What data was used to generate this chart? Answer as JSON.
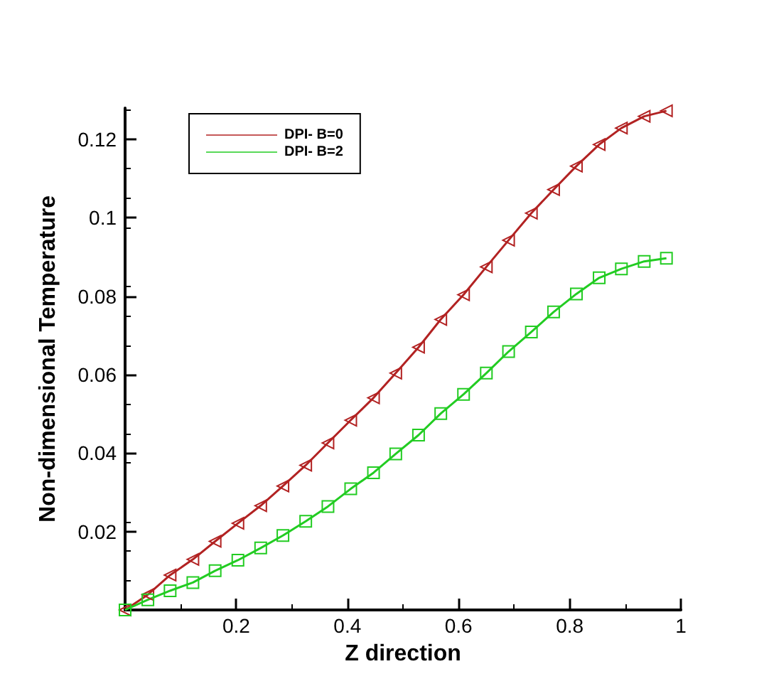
{
  "chart_data": {
    "type": "line",
    "xlabel": "Z direction",
    "ylabel": "Non-dimensional Temperature",
    "x": [
      0,
      0.041,
      0.081,
      0.122,
      0.162,
      0.203,
      0.244,
      0.284,
      0.325,
      0.365,
      0.406,
      0.447,
      0.487,
      0.528,
      0.568,
      0.609,
      0.65,
      0.69,
      0.731,
      0.771,
      0.812,
      0.853,
      0.893,
      0.934,
      0.974
    ],
    "series": [
      {
        "name": "DPI- B=0",
        "color": "#b22222",
        "marker": "triangle",
        "values": [
          0,
          0.0039,
          0.0089,
          0.0129,
          0.0175,
          0.0221,
          0.0266,
          0.0316,
          0.0369,
          0.0426,
          0.0484,
          0.0541,
          0.0604,
          0.067,
          0.0741,
          0.0804,
          0.0875,
          0.0943,
          0.1012,
          0.1072,
          0.1132,
          0.1187,
          0.1229,
          0.1259,
          0.1273
        ]
      },
      {
        "name": "DPI- B=2",
        "color": "#22cc22",
        "marker": "square",
        "values": [
          0,
          0.0026,
          0.0049,
          0.007,
          0.01,
          0.0127,
          0.0158,
          0.019,
          0.0226,
          0.0264,
          0.0309,
          0.035,
          0.0398,
          0.0446,
          0.0501,
          0.055,
          0.0604,
          0.0659,
          0.0709,
          0.076,
          0.0806,
          0.0847,
          0.087,
          0.0889,
          0.0897
        ]
      }
    ],
    "xlim": [
      0,
      1
    ],
    "xticks": [
      {
        "value": 0,
        "label": null
      },
      0.2,
      0.4,
      0.6,
      0.8,
      1
    ],
    "ylim": [
      0,
      0.128
    ],
    "yticks": [
      {
        "value": 0,
        "label": null
      },
      0.02,
      0.04,
      0.06,
      0.08,
      0.1,
      0.12
    ],
    "grid": false,
    "legend": "top left",
    "line_style": "solid"
  }
}
